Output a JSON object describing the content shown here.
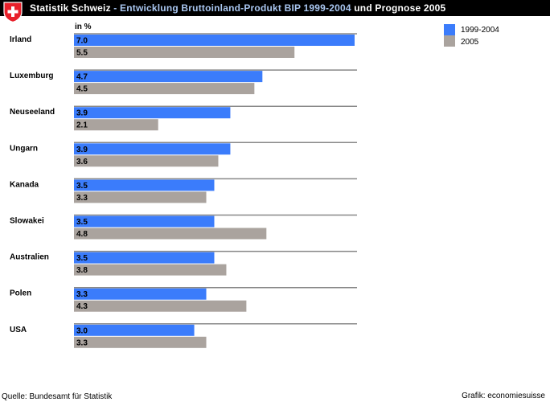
{
  "header": {
    "title_part1": "Statistik Schweiz",
    "title_sep": " - ",
    "title_part2": "Entwicklung Bruttoinland-Produkt BIP 1999-2004",
    "title_part3": " und Prognose 2005"
  },
  "colors": {
    "series1": "#3b7cfb",
    "series2": "#aaa39e",
    "header_bg": "#000000",
    "title_accent": "#a9c6f0",
    "flag_red": "#e8202a"
  },
  "chart_data": {
    "type": "bar",
    "orientation": "horizontal",
    "unit_label": "in %",
    "categories": [
      "Irland",
      "Luxemburg",
      "Neuseeland",
      "Ungarn",
      "Kanada",
      "Slowakei",
      "Australien",
      "Polen",
      "USA"
    ],
    "series": [
      {
        "name": "1999-2004",
        "values": [
          7.0,
          4.7,
          3.9,
          3.9,
          3.5,
          3.5,
          3.5,
          3.3,
          3.0
        ]
      },
      {
        "name": "2005",
        "values": [
          5.5,
          4.5,
          2.1,
          3.6,
          3.3,
          4.8,
          3.8,
          4.3,
          3.3
        ]
      }
    ],
    "value_labels": [
      [
        "7.0",
        "4.7",
        "3.9",
        "3.9",
        "3.5",
        "3.5",
        "3.5",
        "3.3",
        "3.0"
      ],
      [
        "5.5",
        "4.5",
        "2.1",
        "3.6",
        "3.3",
        "4.8",
        "3.8",
        "4.3",
        "3.3"
      ]
    ],
    "xlim": [
      0,
      7.0
    ],
    "legend_position": "top-right",
    "grid": false
  },
  "footer": {
    "source": "Quelle: Bundesamt für Statistik",
    "credit": "Grafik: economiesuisse"
  }
}
